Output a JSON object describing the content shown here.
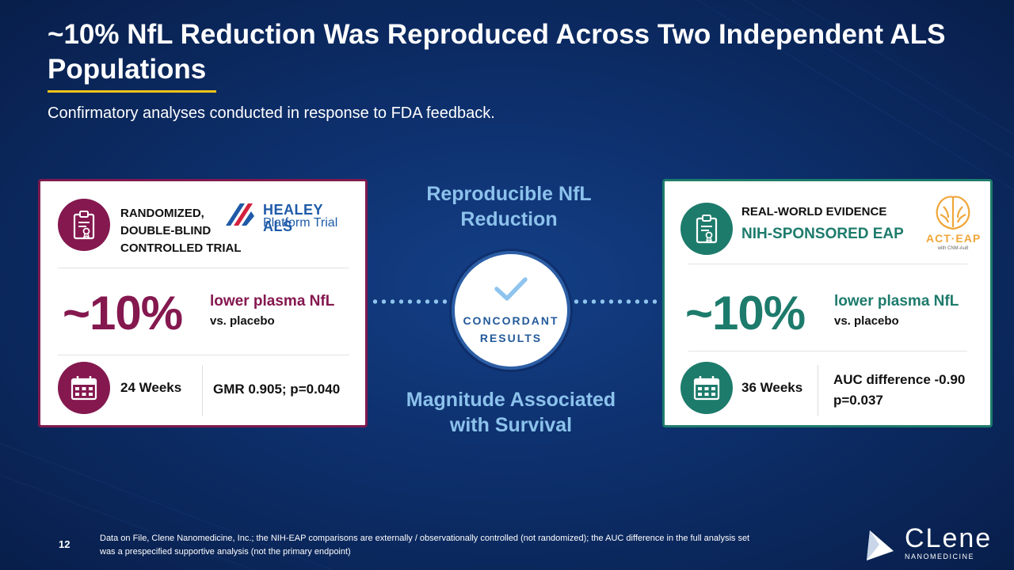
{
  "slide": {
    "title": "~10% NfL Reduction Was Reproduced Across Two Independent ALS Populations",
    "subtitle": "Confirmatory analyses conducted in response to FDA feedback.",
    "page_number": "12",
    "footnote": "Data on File, Clene Nanomedicine, Inc.; the NIH-EAP comparisons are externally / observationally controlled (not randomized); the AUC difference in the full analysis set was a prespecified supportive analysis (not the primary endpoint)"
  },
  "left_card": {
    "header_lines": [
      "RANDOMIZED,",
      "DOUBLE-BLIND",
      "CONTROLLED TRIAL"
    ],
    "logo_line1": "HEALEY ALS",
    "logo_line2": "Platform Trial",
    "percent": "~10%",
    "pct_desc": "lower plasma NfL",
    "pct_vs": "vs. placebo",
    "weeks": "24 Weeks",
    "stat": "GMR 0.905; p=0.040",
    "icons": [
      "clipboard-certificate-icon",
      "calendar-icon"
    ],
    "color": "#84184f"
  },
  "right_card": {
    "header_line1": "REAL-WORLD EVIDENCE",
    "header_line2": "NIH-SPONSORED EAP",
    "logo_text": "ACT·EAP",
    "logo_sub": "with CNM-Au8",
    "percent": "~10%",
    "pct_desc": "lower plasma NfL",
    "pct_vs": "vs. placebo",
    "weeks": "36 Weeks",
    "stat_line1": "AUC difference -0.90",
    "stat_line2": "p=0.037",
    "icons": [
      "clipboard-certificate-icon",
      "calendar-icon"
    ],
    "color": "#1d7b6c"
  },
  "center": {
    "top_label_line1": "Reproducible NfL",
    "top_label_line2": "Reduction",
    "badge_line1": "CONCORDANT",
    "badge_line2": "RESULTS",
    "bottom_label_line1": "Magnitude Associated",
    "bottom_label_line2": "with Survival",
    "badge_icon": "checkmark-icon"
  },
  "brand": {
    "name": "CLene",
    "sub": "NANOMEDICINE",
    "accent": "#f2c318"
  }
}
